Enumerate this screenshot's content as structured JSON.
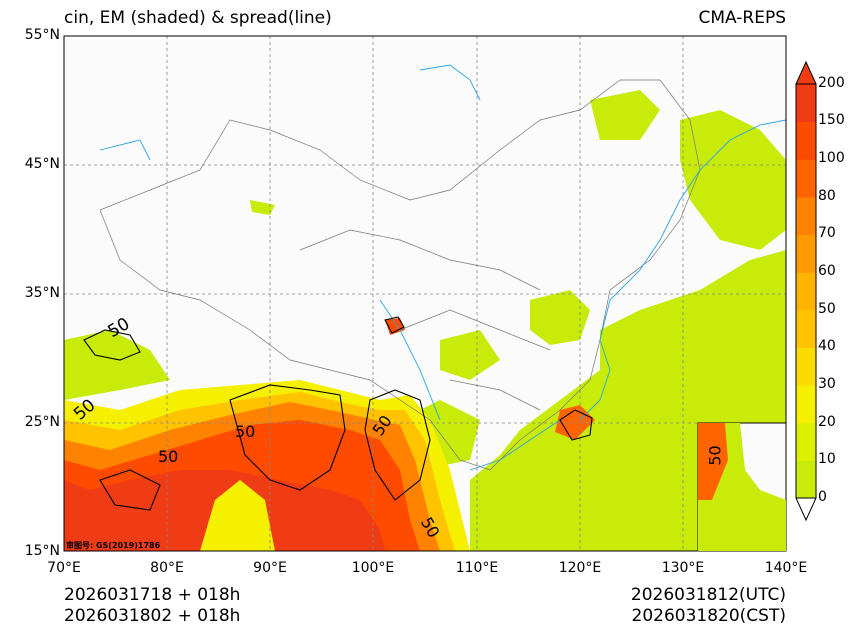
{
  "title": "cin, EM (shaded) & spread(line)",
  "model": "CMA-REPS",
  "axes": {
    "lat_labels": [
      "55°N",
      "45°N",
      "35°N",
      "25°N",
      "15°N"
    ],
    "lon_labels": [
      "70°E",
      "80°E",
      "90°E",
      "100°E",
      "110°E",
      "120°E",
      "130°E",
      "140°E"
    ]
  },
  "colorbar": {
    "levels": [
      "0",
      "10",
      "20",
      "30",
      "40",
      "50",
      "60",
      "70",
      "80",
      "100",
      "150",
      "200"
    ],
    "colors": [
      "#c8eb0a",
      "#dcf000",
      "#f5f000",
      "#fadc00",
      "#ffc300",
      "#ffb400",
      "#ff9b00",
      "#ff8200",
      "#ff6400",
      "#ff4b00",
      "#f03c14"
    ]
  },
  "contour_labels": [
    "50",
    "50",
    "50",
    "50",
    "50",
    "50",
    "50"
  ],
  "watermark": "审图号: GS(2019)1786",
  "init_times": [
    "2026031718  +  018h",
    "2026031802  +  018h"
  ],
  "valid_times": [
    "2026031812(UTC)",
    "2026031820(CST)"
  ]
}
